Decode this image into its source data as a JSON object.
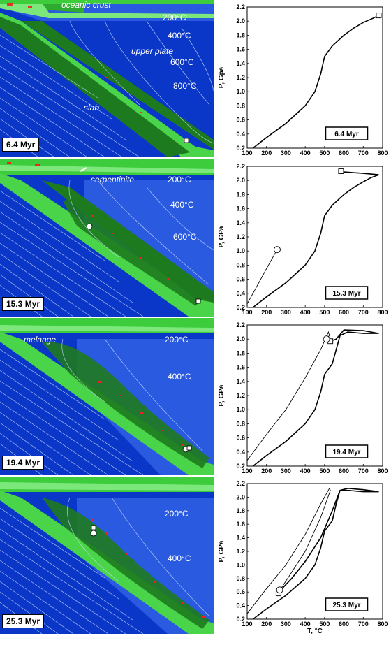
{
  "panels": [
    {
      "time": "6.4 Myr",
      "labels": {
        "oceanic_crust": "oceanic crust",
        "upper_plate": "upper plate",
        "slab": "slab"
      },
      "isotherms": [
        "200°C",
        "400°C",
        "600°C",
        "800°C"
      ]
    },
    {
      "time": "15.3 Myr",
      "labels": {
        "serpentinite": "serpentinite"
      },
      "isotherms": [
        "200°C",
        "400°C",
        "600°C"
      ]
    },
    {
      "time": "19.4 Myr",
      "labels": {
        "melange": "melange"
      },
      "isotherms": [
        "200°C",
        "400°C"
      ]
    },
    {
      "time": "25.3 Myr",
      "labels": {},
      "isotherms": [
        "200°C",
        "400°C"
      ]
    }
  ],
  "axes": {
    "ylabel_first": "P, Gpa",
    "ylabel_other": "P, GPa",
    "xlabel": "T, °C",
    "x_ticks": [
      "100",
      "200",
      "300",
      "400",
      "500",
      "600",
      "700",
      "800"
    ],
    "y_ticks": [
      "0.2",
      "0.4",
      "0.6",
      "0.8",
      "1.0",
      "1.2",
      "1.4",
      "1.6",
      "1.8",
      "2.0",
      "2.2"
    ]
  },
  "chart_data": [
    {
      "type": "line",
      "title": "6.4 Myr",
      "xlabel": "",
      "ylabel": "P, Gpa",
      "xlim": [
        100,
        800
      ],
      "ylim": [
        0.2,
        2.2
      ],
      "series": [
        {
          "x": [
            130,
            200,
            300,
            400,
            450,
            480,
            500,
            540,
            600,
            650,
            700,
            750,
            780
          ],
          "y": [
            0.2,
            0.35,
            0.55,
            0.8,
            1.0,
            1.25,
            1.5,
            1.65,
            1.8,
            1.9,
            1.98,
            2.04,
            2.08
          ]
        }
      ],
      "markers": [
        {
          "shape": "square",
          "x": 780,
          "y": 2.08
        }
      ]
    },
    {
      "type": "line",
      "title": "15.3 Myr",
      "xlabel": "",
      "ylabel": "P, GPa",
      "xlim": [
        100,
        800
      ],
      "ylim": [
        0.2,
        2.2
      ],
      "series": [
        {
          "x": [
            130,
            200,
            300,
            400,
            450,
            480,
            500,
            540,
            600,
            650,
            700,
            740,
            780,
            700,
            600,
            585
          ],
          "y": [
            0.2,
            0.35,
            0.55,
            0.8,
            1.0,
            1.25,
            1.5,
            1.65,
            1.8,
            1.9,
            1.98,
            2.04,
            2.08,
            2.1,
            2.12,
            2.13
          ]
        },
        {
          "x": [
            100,
            150,
            200,
            255
          ],
          "y": [
            0.25,
            0.5,
            0.75,
            1.02
          ]
        }
      ],
      "markers": [
        {
          "shape": "square",
          "x": 585,
          "y": 2.13
        },
        {
          "shape": "circle",
          "x": 255,
          "y": 1.02
        }
      ]
    },
    {
      "type": "line",
      "title": "19.4 Myr",
      "xlabel": "",
      "ylabel": "P, GPa",
      "xlim": [
        100,
        800
      ],
      "ylim": [
        0.2,
        2.2
      ],
      "series": [
        {
          "x": [
            130,
            200,
            300,
            400,
            450,
            480,
            500,
            540,
            560,
            580,
            620,
            700,
            780,
            700,
            600,
            560,
            540,
            530
          ],
          "y": [
            0.2,
            0.35,
            0.55,
            0.8,
            1.0,
            1.25,
            1.5,
            1.65,
            1.85,
            2.05,
            2.1,
            2.08,
            2.08,
            2.12,
            2.13,
            2.0,
            1.98,
            1.97
          ]
        },
        {
          "x": [
            100,
            200,
            300,
            400,
            480,
            520,
            525,
            510
          ],
          "y": [
            0.28,
            0.65,
            1.0,
            1.45,
            1.85,
            2.1,
            2.05,
            2.0
          ]
        }
      ],
      "markers": [
        {
          "shape": "square",
          "x": 530,
          "y": 1.97
        },
        {
          "shape": "circle",
          "x": 510,
          "y": 2.0
        }
      ]
    },
    {
      "type": "line",
      "title": "25.3 Myr",
      "xlabel": "T, °C",
      "ylabel": "P, GPa",
      "xlim": [
        100,
        800
      ],
      "ylim": [
        0.2,
        2.2
      ],
      "series": [
        {
          "x": [
            130,
            200,
            300,
            400,
            450,
            480,
            500,
            540,
            560,
            580,
            620,
            700,
            780,
            700,
            620,
            580,
            540,
            480,
            400,
            330,
            280,
            262
          ],
          "y": [
            0.2,
            0.35,
            0.55,
            0.8,
            1.0,
            1.25,
            1.5,
            1.65,
            1.9,
            2.1,
            2.1,
            2.08,
            2.08,
            2.11,
            2.13,
            2.1,
            1.8,
            1.4,
            1.05,
            0.8,
            0.65,
            0.58
          ]
        },
        {
          "x": [
            100,
            200,
            300,
            400,
            480,
            525,
            530,
            480,
            400,
            320,
            270
          ],
          "y": [
            0.28,
            0.65,
            1.0,
            1.45,
            1.9,
            2.13,
            2.1,
            1.7,
            1.2,
            0.85,
            0.63
          ]
        }
      ],
      "markers": [
        {
          "shape": "square",
          "x": 262,
          "y": 0.58
        },
        {
          "shape": "circle",
          "x": 268,
          "y": 0.63
        }
      ]
    }
  ]
}
